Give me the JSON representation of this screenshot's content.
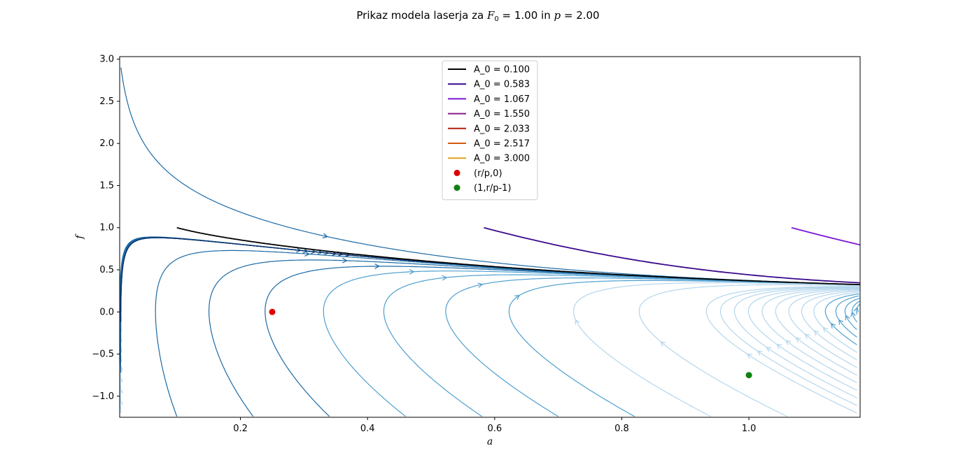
{
  "chart_data": {
    "type": "line",
    "title": {
      "prefix": "Prikaz modela laserja za ",
      "var1": "F",
      "var1_sub": "0",
      "eq1": " = 1.00 in ",
      "var2": "p",
      "eq2": " = 2.00"
    },
    "xlabel": "a",
    "ylabel": "f",
    "xlim": [
      0.01,
      1.175
    ],
    "ylim": [
      -1.25,
      3.03
    ],
    "xticks": [
      0.2,
      0.4,
      0.6,
      0.8,
      1.0
    ],
    "xtick_labels": [
      "0.2",
      "0.4",
      "0.6",
      "0.8",
      "1.0"
    ],
    "yticks": [
      -1.0,
      -0.5,
      0.0,
      0.5,
      1.0,
      1.5,
      2.0,
      2.5,
      3.0
    ],
    "ytick_labels": [
      "−1.0",
      "−0.5",
      "0.0",
      "0.5",
      "1.0",
      "1.5",
      "2.0",
      "2.5",
      "3.0"
    ],
    "grid": false,
    "legend_position": "top-center",
    "parameters": {
      "F0": 1.0,
      "p": 2.0
    },
    "series": [
      {
        "name": "A_0 = 0.100",
        "color": "#000000",
        "a0": 0.1
      },
      {
        "name": "A_0 = 0.583",
        "color": "#3a0a8c",
        "a0": 0.583
      },
      {
        "name": "A_0 = 1.067",
        "color": "#7b16d6",
        "a0": 1.067
      },
      {
        "name": "A_0 = 1.550",
        "color": "#8a1a8a",
        "a0": 1.55
      },
      {
        "name": "A_0 = 2.033",
        "color": "#b01e10",
        "a0": 2.033
      },
      {
        "name": "A_0 = 2.517",
        "color": "#d45a10",
        "a0": 2.517
      },
      {
        "name": "A_0 = 3.000",
        "color": "#e0a020",
        "a0": 3.0
      }
    ],
    "points": [
      {
        "name": "(r/p,0)",
        "x": 0.25,
        "y": 0.0,
        "color": "#e00000"
      },
      {
        "name": "(1,r/p-1)",
        "x": 1.0,
        "y": -0.75,
        "color": "#108010"
      }
    ],
    "stream_colormap": [
      "#08306b",
      "#1b6aa5",
      "#4f9fcf",
      "#b4d6ec"
    ]
  }
}
